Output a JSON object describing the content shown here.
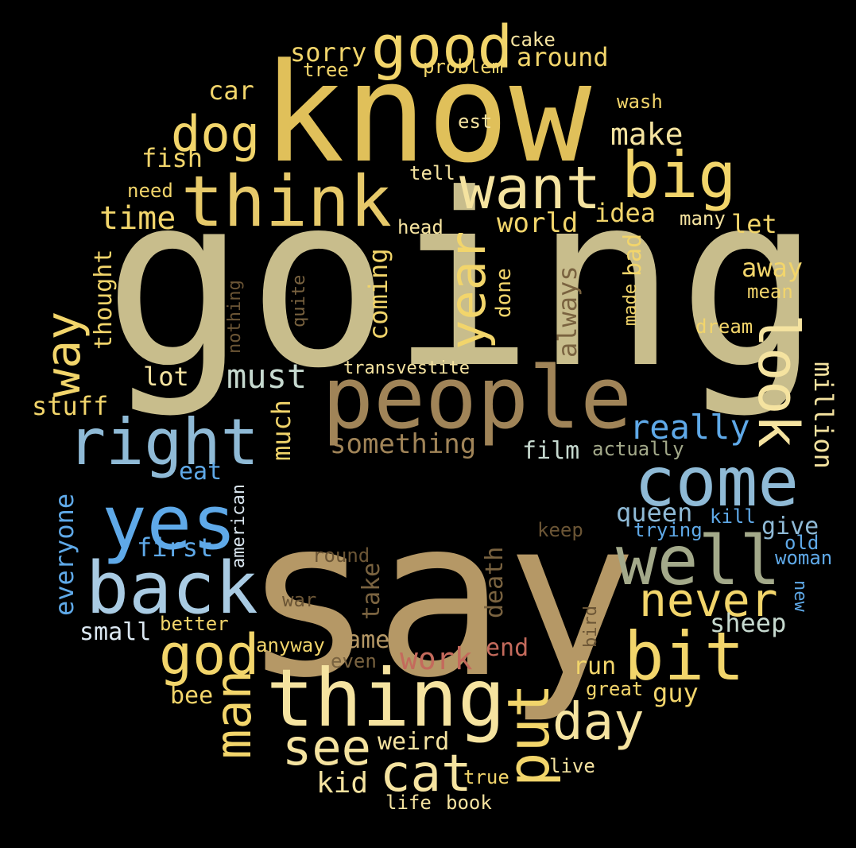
{
  "wordcloud": {
    "background": "#000000",
    "palette": {
      "gold": "#e0c05a",
      "yellow": "#f2d56b",
      "pale": "#f5e3a0",
      "khaki": "#c8bd8c",
      "tan": "#b59866",
      "brown": "#a08458",
      "darkbrown": "#7a6340",
      "sky": "#8fbad6",
      "lightblue": "#a9cbe3",
      "blue": "#5fa9e8",
      "sage": "#a3a98a",
      "rose": "#c46a5c"
    },
    "words": [
      {
        "text": "going",
        "color": "#c8bd8c"
      },
      {
        "text": "say",
        "color": "#b59866"
      },
      {
        "text": "know",
        "color": "#e0c05a"
      },
      {
        "text": "people",
        "color": "#a08458"
      },
      {
        "text": "thing",
        "color": "#f5e3a0"
      },
      {
        "text": "think",
        "color": "#e6c96a"
      },
      {
        "text": "good",
        "color": "#f2d56b"
      },
      {
        "text": "want",
        "color": "#f5e3a0"
      },
      {
        "text": "big",
        "color": "#f2d56b"
      },
      {
        "text": "right",
        "color": "#8fbad6"
      },
      {
        "text": "yes",
        "color": "#5fa9e8"
      },
      {
        "text": "back",
        "color": "#a9cbe3"
      },
      {
        "text": "come",
        "color": "#8fbad6"
      },
      {
        "text": "well",
        "color": "#a3a98a"
      },
      {
        "text": "look",
        "color": "#f5e3a0"
      },
      {
        "text": "year",
        "color": "#f2d56b"
      },
      {
        "text": "bit",
        "color": "#f2d56b"
      },
      {
        "text": "never",
        "color": "#f2d56b"
      },
      {
        "text": "god",
        "color": "#f2d56b"
      },
      {
        "text": "dog",
        "color": "#f2d56b"
      },
      {
        "text": "put",
        "color": "#f2d56b"
      },
      {
        "text": "day",
        "color": "#f5e3a0"
      },
      {
        "text": "cat",
        "color": "#f5e3a0"
      },
      {
        "text": "see",
        "color": "#f5e3a0"
      },
      {
        "text": "man",
        "color": "#f2d56b"
      },
      {
        "text": "way",
        "color": "#f2d56b"
      },
      {
        "text": "time",
        "color": "#f2d56b"
      },
      {
        "text": "make",
        "color": "#f5e3a0"
      },
      {
        "text": "must",
        "color": "#c6d9cf"
      },
      {
        "text": "really",
        "color": "#5fa9e8"
      },
      {
        "text": "work",
        "color": "#c46a5c"
      },
      {
        "text": "sorry",
        "color": "#f2d56b"
      },
      {
        "text": "around",
        "color": "#f2d56b"
      },
      {
        "text": "coming",
        "color": "#f2d56b"
      },
      {
        "text": "something",
        "color": "#a08458"
      },
      {
        "text": "million",
        "color": "#f5e3a0"
      },
      {
        "text": "away",
        "color": "#f2d56b"
      },
      {
        "text": "world",
        "color": "#f2d56b"
      },
      {
        "text": "idea",
        "color": "#f2d56b"
      },
      {
        "text": "much",
        "color": "#f2d56b"
      },
      {
        "text": "fish",
        "color": "#f2d56b"
      },
      {
        "text": "car",
        "color": "#f2d56b"
      },
      {
        "text": "lot",
        "color": "#f5e3a0"
      },
      {
        "text": "stuff",
        "color": "#f2d56b"
      },
      {
        "text": "thought",
        "color": "#f2d56b"
      },
      {
        "text": "everyone",
        "color": "#5fa9e8"
      },
      {
        "text": "first",
        "color": "#5fa9e8"
      },
      {
        "text": "eat",
        "color": "#5fa9e8"
      },
      {
        "text": "small",
        "color": "#dce8f2"
      },
      {
        "text": "queen",
        "color": "#8fbad6"
      },
      {
        "text": "give",
        "color": "#8fbad6"
      },
      {
        "text": "sheep",
        "color": "#c6d9cf"
      },
      {
        "text": "film",
        "color": "#c6d9cf"
      },
      {
        "text": "take",
        "color": "#7a6340"
      },
      {
        "text": "death",
        "color": "#7a6340"
      },
      {
        "text": "came",
        "color": "#b59866"
      },
      {
        "text": "end",
        "color": "#c46a5c"
      },
      {
        "text": "run",
        "color": "#f2d56b"
      },
      {
        "text": "guy",
        "color": "#f2d56b"
      },
      {
        "text": "weird",
        "color": "#f5e3a0"
      },
      {
        "text": "kid",
        "color": "#f5e3a0"
      },
      {
        "text": "bee",
        "color": "#f2d56b"
      },
      {
        "text": "cake",
        "color": "#f5e3a0"
      },
      {
        "text": "problem",
        "color": "#f2d56b"
      },
      {
        "text": "tree",
        "color": "#f2d56b"
      },
      {
        "text": "wash",
        "color": "#f2d56b"
      },
      {
        "text": "est",
        "color": "#f5e3a0"
      },
      {
        "text": "tell",
        "color": "#f5e3a0"
      },
      {
        "text": "need",
        "color": "#f2d56b"
      },
      {
        "text": "head",
        "color": "#f5e3a0"
      },
      {
        "text": "many",
        "color": "#f5e3a0"
      },
      {
        "text": "let",
        "color": "#f2d56b"
      },
      {
        "text": "bad",
        "color": "#f2d56b"
      },
      {
        "text": "made",
        "color": "#f2d56b"
      },
      {
        "text": "done",
        "color": "#f2d56b"
      },
      {
        "text": "always",
        "color": "#7a6340"
      },
      {
        "text": "mean",
        "color": "#f2d56b"
      },
      {
        "text": "dream",
        "color": "#f2d56b"
      },
      {
        "text": "nothing",
        "color": "#6b5535"
      },
      {
        "text": "quite",
        "color": "#7a6340"
      },
      {
        "text": "transvestite",
        "color": "#f5e3a0"
      },
      {
        "text": "actually",
        "color": "#a3a98a"
      },
      {
        "text": "american",
        "color": "#dce8f2"
      },
      {
        "text": "keep",
        "color": "#6b5535"
      },
      {
        "text": "trying",
        "color": "#5fa9e8"
      },
      {
        "text": "kill",
        "color": "#5fa9e8"
      },
      {
        "text": "old",
        "color": "#5fa9e8"
      },
      {
        "text": "woman",
        "color": "#5fa9e8"
      },
      {
        "text": "new",
        "color": "#5fa9e8"
      },
      {
        "text": "round",
        "color": "#6b5535"
      },
      {
        "text": "war",
        "color": "#6b5535"
      },
      {
        "text": "bird",
        "color": "#6b5535"
      },
      {
        "text": "better",
        "color": "#f2d56b"
      },
      {
        "text": "anyway",
        "color": "#f2d56b"
      },
      {
        "text": "even",
        "color": "#7a6340"
      },
      {
        "text": "great",
        "color": "#f2d56b"
      },
      {
        "text": "true",
        "color": "#f2d56b"
      },
      {
        "text": "live",
        "color": "#f5e3a0"
      },
      {
        "text": "life",
        "color": "#f5e3a0"
      },
      {
        "text": "book",
        "color": "#f5e3a0"
      }
    ]
  }
}
